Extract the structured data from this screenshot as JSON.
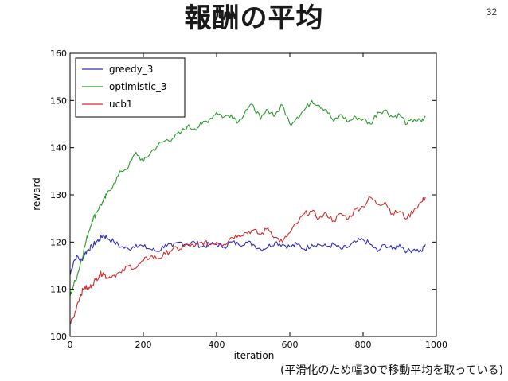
{
  "slide": {
    "title": "報酬の平均",
    "page_number": "32",
    "caption": "(平滑化のため幅30で移動平均を取っている)"
  },
  "chart_data": {
    "type": "line",
    "title": "",
    "xlabel": "iteration",
    "ylabel": "reward",
    "xlim": [
      0,
      1000
    ],
    "ylim": [
      100,
      160
    ],
    "xticks": [
      0,
      200,
      400,
      600,
      800,
      1000
    ],
    "yticks": [
      100,
      110,
      120,
      130,
      140,
      150,
      160
    ],
    "grid": false,
    "legend_position": "top-left",
    "series": [
      {
        "name": "greedy_3",
        "color": "#2e2eb8",
        "x": [
          0,
          10,
          20,
          30,
          40,
          50,
          60,
          70,
          80,
          90,
          100,
          120,
          140,
          160,
          180,
          200,
          220,
          240,
          260,
          280,
          300,
          320,
          340,
          360,
          380,
          400,
          420,
          440,
          460,
          480,
          500,
          520,
          540,
          560,
          580,
          600,
          620,
          640,
          660,
          680,
          700,
          720,
          740,
          760,
          780,
          800,
          820,
          840,
          860,
          880,
          900,
          920,
          940,
          960,
          970
        ],
        "values": [
          113,
          116,
          117,
          116,
          117.5,
          118.5,
          119,
          120,
          120.5,
          121.5,
          121,
          120,
          119,
          118.5,
          119.5,
          119,
          118.5,
          118,
          119.5,
          119,
          120,
          119.5,
          120,
          119,
          119.5,
          119.5,
          119,
          120,
          119.5,
          120,
          119.5,
          118.5,
          119,
          120,
          119.5,
          119,
          119.5,
          118.5,
          119.5,
          119.5,
          119,
          119.5,
          118.5,
          119,
          120,
          120.5,
          119.5,
          118,
          119.5,
          118.5,
          119.5,
          118,
          118.5,
          118,
          119.5
        ]
      },
      {
        "name": "optimistic_3",
        "color": "#2a9a2a",
        "x": [
          0,
          10,
          20,
          30,
          40,
          50,
          60,
          70,
          80,
          90,
          100,
          120,
          140,
          160,
          180,
          200,
          220,
          240,
          260,
          280,
          300,
          320,
          340,
          360,
          380,
          400,
          420,
          440,
          460,
          480,
          500,
          520,
          540,
          560,
          580,
          600,
          620,
          640,
          660,
          680,
          700,
          720,
          740,
          760,
          780,
          800,
          820,
          840,
          860,
          880,
          900,
          920,
          940,
          960,
          970
        ],
        "values": [
          108.5,
          111,
          113,
          116,
          119,
          122,
          124.5,
          126,
          127.5,
          128.5,
          130,
          132.5,
          135,
          136,
          139,
          137,
          139,
          140.5,
          141.5,
          142,
          143,
          144.5,
          144,
          145,
          146,
          147.5,
          146.5,
          147,
          145.5,
          148,
          149,
          146,
          148,
          147,
          149,
          145,
          146.5,
          148,
          150,
          149,
          148,
          145.5,
          147,
          145.5,
          146.5,
          146,
          145,
          147.5,
          148,
          146.5,
          147,
          145,
          146,
          145.5,
          146.5
        ]
      },
      {
        "name": "ucb1",
        "color": "#d42a2a",
        "x": [
          0,
          10,
          20,
          30,
          40,
          50,
          60,
          70,
          80,
          90,
          100,
          120,
          140,
          160,
          180,
          200,
          220,
          240,
          260,
          280,
          300,
          320,
          340,
          360,
          380,
          400,
          420,
          440,
          460,
          480,
          500,
          520,
          540,
          560,
          580,
          600,
          620,
          640,
          660,
          680,
          700,
          720,
          740,
          760,
          780,
          800,
          820,
          840,
          860,
          880,
          900,
          920,
          940,
          960,
          970
        ],
        "values": [
          103,
          104,
          107,
          109,
          110.5,
          110,
          111,
          112,
          113,
          113.5,
          112.5,
          113,
          113.5,
          115,
          114.5,
          116,
          117,
          116.5,
          117.5,
          118.5,
          118.5,
          119.5,
          119,
          120,
          119.5,
          120,
          119.5,
          121,
          121.5,
          122,
          122.5,
          121.5,
          123,
          121,
          120,
          122,
          124,
          126,
          126.5,
          125,
          126,
          124.5,
          126,
          125,
          127,
          127.5,
          129.5,
          128,
          128.5,
          126,
          126.5,
          125,
          127,
          128.5,
          129.5
        ]
      }
    ]
  }
}
